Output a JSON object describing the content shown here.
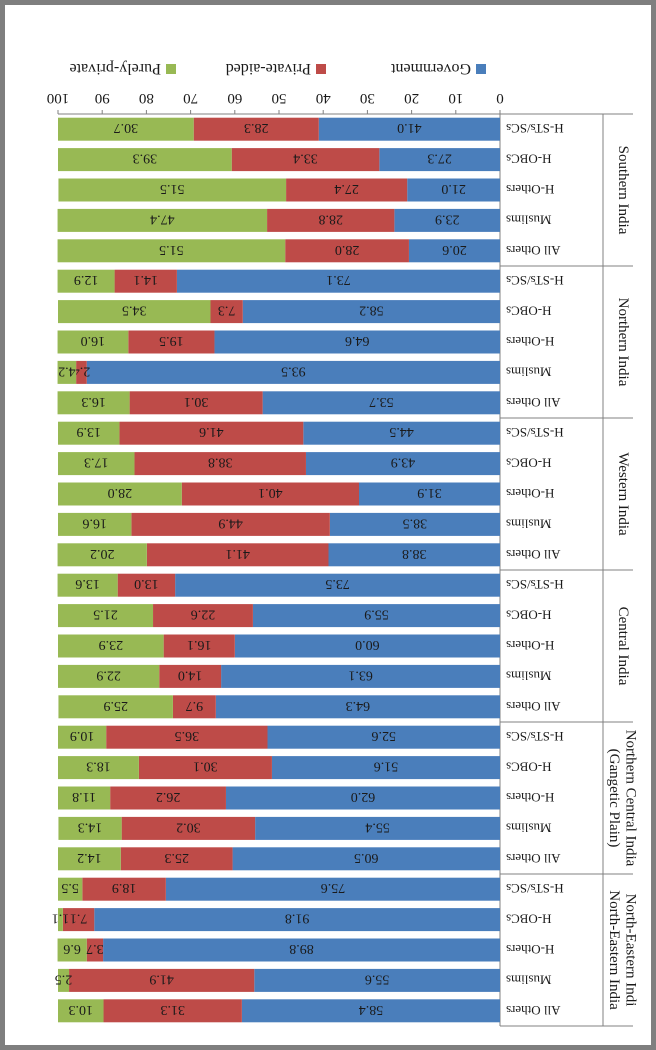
{
  "chart_data": {
    "type": "bar",
    "stacked": true,
    "orientation": "horizontal",
    "rotation_degrees": 180,
    "xlim": [
      0,
      100
    ],
    "x_ticks": [
      "0",
      "10",
      "20",
      "30",
      "40",
      "50",
      "60",
      "70",
      "80",
      "90",
      "100"
    ],
    "grid": false,
    "legend_position": "top",
    "series": [
      {
        "name": "Government",
        "color": "#4a7ebb"
      },
      {
        "name": "Private-aided",
        "color": "#be4b48"
      },
      {
        "name": "Purely-private",
        "color": "#98b954"
      }
    ],
    "groups": [
      {
        "name": "North-Eastern India",
        "categories": [
          {
            "name": "All Others",
            "values": [
              58.4,
              31.3,
              10.3
            ],
            "labels": [
              "58.4",
              "31.3",
              "10.3"
            ]
          },
          {
            "name": "Muslims",
            "values": [
              55.6,
              41.9,
              2.5
            ],
            "labels": [
              "55.6",
              "41.9",
              "2.5"
            ]
          },
          {
            "name": "H-Others",
            "values": [
              89.8,
              3.7,
              6.6
            ],
            "labels": [
              "89.8",
              "3.7",
              "6.6"
            ]
          },
          {
            "name": "H-OBCs",
            "values": [
              91.8,
              7.1,
              1.1
            ],
            "labels": [
              "91.8",
              "7.1",
              "1.1"
            ]
          },
          {
            "name": "H-STs/SCs",
            "values": [
              75.6,
              18.9,
              5.5
            ],
            "labels": [
              "75.6",
              "18.9",
              "5.5"
            ]
          }
        ]
      },
      {
        "name": "Northern Central India (Gangetic Plain)",
        "categories": [
          {
            "name": "All Others",
            "values": [
              60.5,
              25.3,
              14.2
            ],
            "labels": [
              "60.5",
              "25.3",
              "14.2"
            ]
          },
          {
            "name": "Muslims",
            "values": [
              55.4,
              30.2,
              14.3
            ],
            "labels": [
              "55.4",
              "30.2",
              "14.3"
            ]
          },
          {
            "name": "H-Others",
            "values": [
              62.0,
              26.2,
              11.8
            ],
            "labels": [
              "62.0",
              "26.2",
              "11.8"
            ]
          },
          {
            "name": "H-OBCs",
            "values": [
              51.6,
              30.1,
              18.3
            ],
            "labels": [
              "51.6",
              "30.1",
              "18.3"
            ]
          },
          {
            "name": "H-STs/SCs",
            "values": [
              52.6,
              36.5,
              10.9
            ],
            "labels": [
              "52.6",
              "36.5",
              "10.9"
            ]
          }
        ]
      },
      {
        "name": "Central India",
        "categories": [
          {
            "name": "All Others",
            "values": [
              64.3,
              9.7,
              25.9
            ],
            "labels": [
              "64.3",
              "9.7",
              "25.9"
            ]
          },
          {
            "name": "Muslims",
            "values": [
              63.1,
              14.0,
              22.9
            ],
            "labels": [
              "63.1",
              "14.0",
              "22.9"
            ]
          },
          {
            "name": "H-Others",
            "values": [
              60.0,
              16.1,
              23.9
            ],
            "labels": [
              "60.0",
              "16.1",
              "23.9"
            ]
          },
          {
            "name": "H-OBCs",
            "values": [
              55.9,
              22.6,
              21.5
            ],
            "labels": [
              "55.9",
              "22.6",
              "21.5"
            ]
          },
          {
            "name": "H-STs/SCs",
            "values": [
              73.5,
              13.0,
              13.6
            ],
            "labels": [
              "73.5",
              "13.0",
              "13.6"
            ]
          }
        ]
      },
      {
        "name": "Western India",
        "categories": [
          {
            "name": "All Others",
            "values": [
              38.8,
              41.1,
              20.2
            ],
            "labels": [
              "38.8",
              "41.1",
              "20.2"
            ]
          },
          {
            "name": "Muslims",
            "values": [
              38.5,
              44.9,
              16.6
            ],
            "labels": [
              "38.5",
              "44.9",
              "16.6"
            ]
          },
          {
            "name": "H-Others",
            "values": [
              31.9,
              40.1,
              28.0
            ],
            "labels": [
              "31.9",
              "40.1",
              "28.0"
            ]
          },
          {
            "name": "H-OBCs",
            "values": [
              43.9,
              38.8,
              17.3
            ],
            "labels": [
              "43.9",
              "38.8",
              "17.3"
            ]
          },
          {
            "name": "H-STs/SCs",
            "values": [
              44.5,
              41.6,
              13.9
            ],
            "labels": [
              "44.5",
              "41.6",
              "13.9"
            ]
          }
        ]
      },
      {
        "name": "Northern India",
        "categories": [
          {
            "name": "All Others",
            "values": [
              53.7,
              30.1,
              16.3
            ],
            "labels": [
              "53.7",
              "30.1",
              "16.3"
            ]
          },
          {
            "name": "Muslims",
            "values": [
              93.5,
              2.4,
              4.2
            ],
            "labels": [
              "93.5",
              "2.4",
              "4.2"
            ]
          },
          {
            "name": "H-Others",
            "values": [
              64.6,
              19.5,
              16.0
            ],
            "labels": [
              "64.6",
              "19.5",
              "16.0"
            ]
          },
          {
            "name": "H-OBCs",
            "values": [
              58.2,
              7.3,
              34.5
            ],
            "labels": [
              "58.2",
              "7.3",
              "34.5"
            ]
          },
          {
            "name": "H-STs/SCs",
            "values": [
              73.1,
              14.1,
              12.9
            ],
            "labels": [
              "73.1",
              "14.1",
              "12.9"
            ]
          }
        ]
      },
      {
        "name": "Southern India",
        "categories": [
          {
            "name": "All Others",
            "values": [
              20.6,
              28.0,
              51.5
            ],
            "labels": [
              "20.6",
              "28.0",
              "51.5"
            ]
          },
          {
            "name": "Muslims",
            "values": [
              23.9,
              28.8,
              47.4
            ],
            "labels": [
              "23.9",
              "28.8",
              "47.4"
            ]
          },
          {
            "name": "H-Others",
            "values": [
              21.0,
              27.4,
              51.5
            ],
            "labels": [
              "21.0",
              "27.4",
              "51.5"
            ]
          },
          {
            "name": "H-OBCs",
            "values": [
              27.3,
              33.4,
              39.3
            ],
            "labels": [
              "27.3",
              "33.4",
              "39.3"
            ]
          },
          {
            "name": "H-STs/SCs",
            "values": [
              41.0,
              28.3,
              30.7
            ],
            "labels": [
              "41.0",
              "28.3",
              "30.7"
            ]
          }
        ]
      }
    ]
  }
}
